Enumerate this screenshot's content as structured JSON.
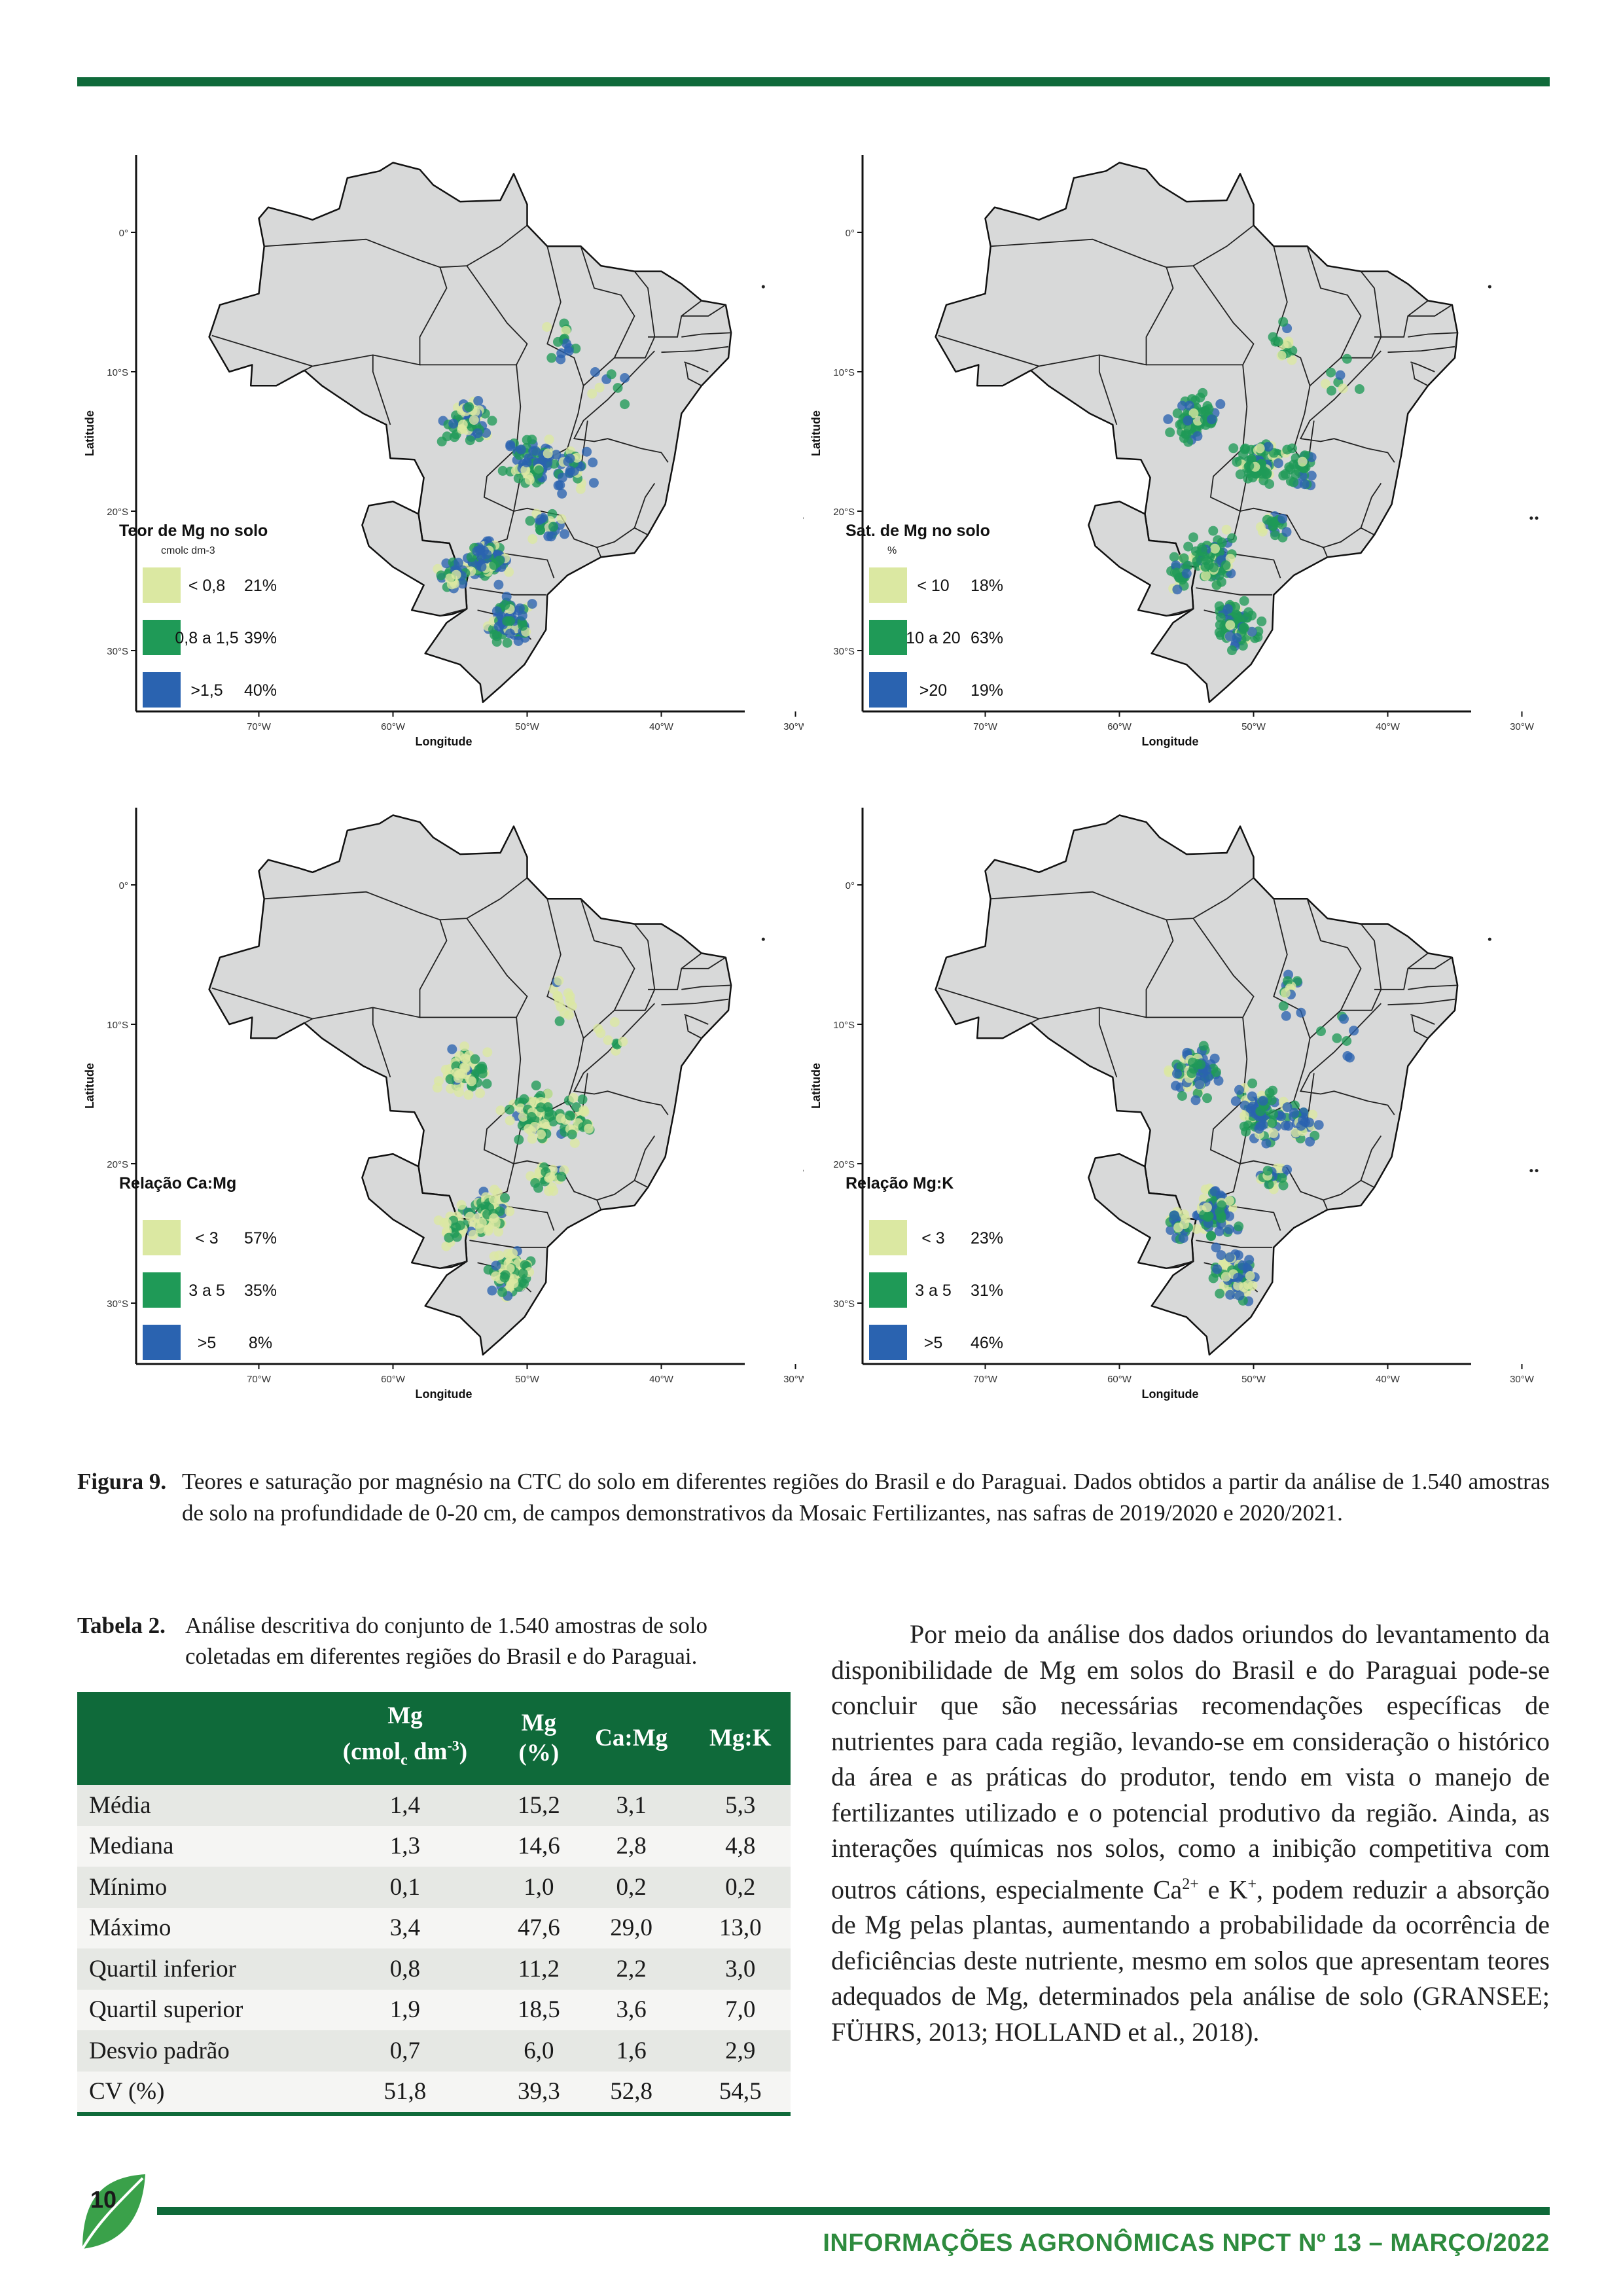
{
  "axis": {
    "latitude_label": "Latitude",
    "longitude_label": "Longitude",
    "lat_ticks": [
      "0°",
      "10°S",
      "20°S",
      "30°S"
    ],
    "lon_ticks": [
      "70°W",
      "60°W",
      "50°W",
      "40°W",
      "30°W"
    ]
  },
  "maps": [
    {
      "legend_title": "Teor de Mg no solo",
      "legend_unit": "cmolc dm-3",
      "classes": [
        {
          "label": "< 0,8",
          "pct": "21%",
          "color": "#dbe8a2"
        },
        {
          "label": "0,8 a 1,5",
          "pct": "39%",
          "color": "#1f9a57"
        },
        {
          "label": ">1,5",
          "pct": "40%",
          "color": "#2a63b0"
        }
      ]
    },
    {
      "legend_title": "Sat. de Mg no solo",
      "legend_unit": "%",
      "classes": [
        {
          "label": "< 10",
          "pct": "18%",
          "color": "#dbe8a2"
        },
        {
          "label": "10 a 20",
          "pct": "63%",
          "color": "#1f9a57"
        },
        {
          "label": ">20",
          "pct": "19%",
          "color": "#2a63b0"
        }
      ]
    },
    {
      "legend_title": "Relação Ca:Mg",
      "legend_unit": "",
      "classes": [
        {
          "label": "< 3",
          "pct": "57%",
          "color": "#dbe8a2"
        },
        {
          "label": "3 a 5",
          "pct": "35%",
          "color": "#1f9a57"
        },
        {
          "label": ">5",
          "pct": "8%",
          "color": "#2a63b0"
        }
      ]
    },
    {
      "legend_title": "Relação Mg:K",
      "legend_unit": "",
      "classes": [
        {
          "label": "< 3",
          "pct": "23%",
          "color": "#dbe8a2"
        },
        {
          "label": "3 a 5",
          "pct": "31%",
          "color": "#1f9a57"
        },
        {
          "label": ">5",
          "pct": "46%",
          "color": "#2a63b0"
        }
      ]
    }
  ],
  "figure_caption": {
    "label": "Figura 9.",
    "text": "Teores e saturação por magnésio na CTC do solo em diferentes regiões do Brasil e do Paraguai. Dados obtidos a partir da análise de 1.540 amostras de solo na profundidade de 0-20 cm, de campos demonstrativos da Mosaic Fertilizantes, nas safras de 2019/2020 e 2020/2021."
  },
  "table_caption": {
    "label": "Tabela 2.",
    "text": "Análise descritiva do conjunto de 1.540 amostras de solo coletadas em diferentes regiões do Brasil e do Paraguai."
  },
  "table": {
    "headers": [
      {
        "line1": "Mg",
        "line2": "(cmolc dm-3)"
      },
      {
        "line1": "Mg",
        "line2": "(%)"
      },
      {
        "line1": "Ca:Mg",
        "line2": ""
      },
      {
        "line1": "Mg:K",
        "line2": ""
      }
    ],
    "rows": [
      {
        "label": "Média",
        "values": [
          "1,4",
          "15,2",
          "3,1",
          "5,3"
        ]
      },
      {
        "label": "Mediana",
        "values": [
          "1,3",
          "14,6",
          "2,8",
          "4,8"
        ]
      },
      {
        "label": "Mínimo",
        "values": [
          "0,1",
          "1,0",
          "0,2",
          "0,2"
        ]
      },
      {
        "label": "Máximo",
        "values": [
          "3,4",
          "47,6",
          "29,0",
          "13,0"
        ]
      },
      {
        "label": "Quartil inferior",
        "values": [
          "0,8",
          "11,2",
          "2,2",
          "3,0"
        ]
      },
      {
        "label": "Quartil superior",
        "values": [
          "1,9",
          "18,5",
          "3,6",
          "7,0"
        ]
      },
      {
        "label": "Desvio padrão",
        "values": [
          "0,7",
          "6,0",
          "1,6",
          "2,9"
        ]
      },
      {
        "label": "CV (%)",
        "values": [
          "51,8",
          "39,3",
          "52,8",
          "54,5"
        ]
      }
    ]
  },
  "paragraph": "Por meio da análise dos dados oriundos do levantamento da disponibilidade de Mg em solos do Brasil e do Paraguai pode-se concluir que são necessárias recomendações específicas de nutrientes para cada região, levando-se em consideração o histórico da área e as práticas do produtor, tendo em vista o manejo de fertilizantes utilizado e o potencial produtivo da região. Ainda, as interações químicas nos solos, como a inibição competitiva com outros cátions, especialmente Ca2+ e K+, podem reduzir a absorção de Mg pelas plantas, aumentando a probabilidade da ocorrência de deficiências deste nutriente, mesmo em solos que apresentam teores adequados de Mg, determinados pela análise de solo (GRANSEE; FÜHRS, 2013; HOLLAND et al., 2018).",
  "page_number": "10",
  "footer": "INFORMAÇÕES AGRONÔMICAS NPCT Nº 13 – MARÇO/2022"
}
